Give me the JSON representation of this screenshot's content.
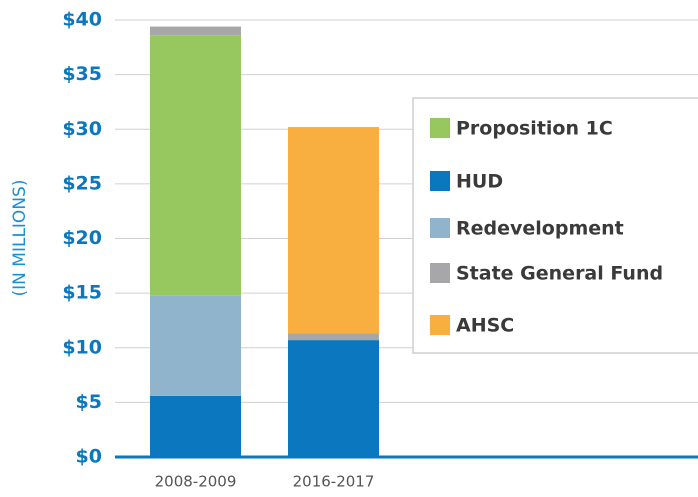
{
  "chart_data": {
    "type": "stacked_bar",
    "y_axis_label": "(IN MILLIONS)",
    "categories": [
      "2008-2009",
      "2016-2017"
    ],
    "series": [
      {
        "name": "HUD",
        "color": "#0a77bf",
        "values": [
          5.6,
          10.7
        ]
      },
      {
        "name": "Redevelopment",
        "color": "#8fb4cb",
        "values": [
          9.2,
          0
        ]
      },
      {
        "name": "Proposition 1C",
        "color": "#97c85f",
        "values": [
          23.8,
          0
        ]
      },
      {
        "name": "State General Fund",
        "color": "#a7a7a9",
        "values": [
          0.8,
          0.6
        ]
      },
      {
        "name": "AHSC",
        "color": "#f9ae40",
        "values": [
          0,
          18.9
        ]
      }
    ],
    "ylim": [
      0,
      40
    ],
    "yticks": [
      {
        "value": 0,
        "label": "$0"
      },
      {
        "value": 5,
        "label": "$5"
      },
      {
        "value": 10,
        "label": "$10"
      },
      {
        "value": 15,
        "label": "$15"
      },
      {
        "value": 20,
        "label": "$20"
      },
      {
        "value": 25,
        "label": "$25"
      },
      {
        "value": 30,
        "label": "$30"
      },
      {
        "value": 35,
        "label": "$35"
      },
      {
        "value": 40,
        "label": "$40"
      }
    ],
    "grid": true
  }
}
